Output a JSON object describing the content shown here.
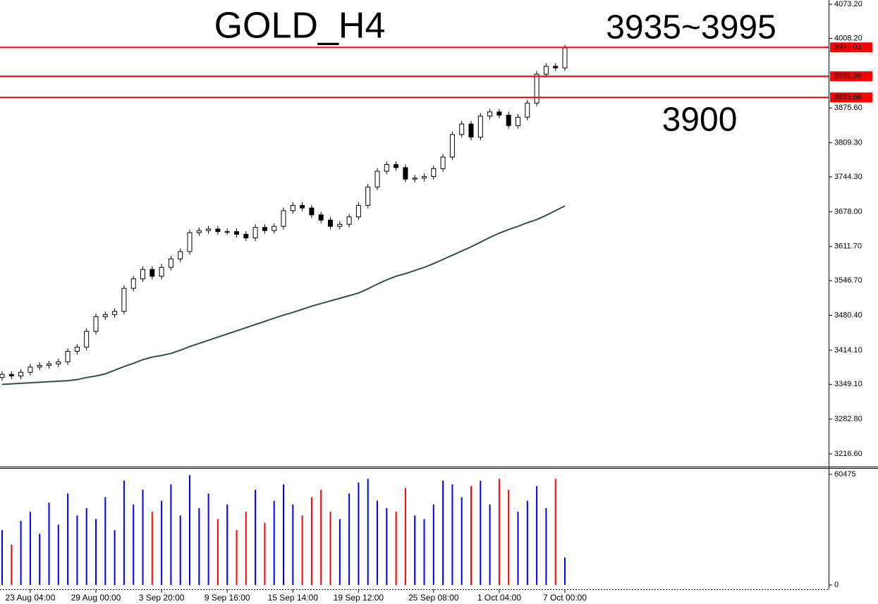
{
  "chart_data": [
    {
      "type": "candlestick",
      "annotations": [
        {
          "text": "GOLD_H4",
          "color": "#ff0000"
        },
        {
          "text": "3935~3995",
          "color": "#000080"
        },
        {
          "text": "3900",
          "color": "#ff0000"
        }
      ],
      "ylim": [
        3192.4,
        4081.3
      ],
      "yticks": [
        {
          "value": 4073.2,
          "label": "4073.20"
        },
        {
          "value": 4008.2,
          "label": "4008.20"
        },
        {
          "value": 3875.6,
          "label": "3875.60"
        },
        {
          "value": 3809.3,
          "label": "3809.30"
        },
        {
          "value": 3744.3,
          "label": "3744.30"
        },
        {
          "value": 3678,
          "label": "3678.00"
        },
        {
          "value": 3611.7,
          "label": "3611.70"
        },
        {
          "value": 3546.7,
          "label": "3546.70"
        },
        {
          "value": 3480.4,
          "label": "3480.40"
        },
        {
          "value": 3414.1,
          "label": "3414.10"
        },
        {
          "value": 3349.1,
          "label": "3349.10"
        },
        {
          "value": 3282.8,
          "label": "3282.80"
        },
        {
          "value": 3216.6,
          "label": "3216.60"
        }
      ],
      "hlines": {
        "color": "#ff0000",
        "values": [
          3991.03,
          3935.96,
          3895.66
        ]
      },
      "candles": {
        "open": [
          3362,
          3368,
          3365,
          3372,
          3382,
          3385,
          3388,
          3392,
          3412,
          3420,
          3450,
          3478,
          3482,
          3488,
          3532,
          3550,
          3568,
          3555,
          3572,
          3588,
          3602,
          3638,
          3642,
          3645,
          3640,
          3640,
          3635,
          3628,
          3648,
          3642,
          3650,
          3680,
          3690,
          3685,
          3672,
          3662,
          3650,
          3654,
          3668,
          3690,
          3725,
          3755,
          3768,
          3762,
          3740,
          3742,
          3745,
          3760,
          3782,
          3825,
          3845,
          3820,
          3860,
          3868,
          3862,
          3842,
          3858,
          3885,
          3940,
          3955,
          3952
        ],
        "high": [
          3374,
          3374,
          3378,
          3388,
          3391,
          3394,
          3398,
          3418,
          3426,
          3456,
          3484,
          3488,
          3494,
          3538,
          3556,
          3574,
          3574,
          3578,
          3594,
          3608,
          3644,
          3648,
          3651,
          3651,
          3646,
          3646,
          3641,
          3654,
          3654,
          3656,
          3686,
          3696,
          3696,
          3691,
          3678,
          3668,
          3660,
          3674,
          3696,
          3731,
          3761,
          3774,
          3774,
          3768,
          3748,
          3751,
          3766,
          3788,
          3831,
          3851,
          3851,
          3866,
          3874,
          3874,
          3868,
          3864,
          3891,
          3946,
          3961,
          3961,
          3996
        ],
        "low": [
          3356,
          3359,
          3359,
          3366,
          3376,
          3379,
          3382,
          3386,
          3406,
          3414,
          3444,
          3472,
          3476,
          3482,
          3526,
          3544,
          3549,
          3549,
          3566,
          3582,
          3596,
          3632,
          3636,
          3634,
          3634,
          3629,
          3622,
          3622,
          3636,
          3636,
          3644,
          3674,
          3679,
          3666,
          3656,
          3644,
          3644,
          3648,
          3662,
          3684,
          3719,
          3749,
          3756,
          3734,
          3734,
          3736,
          3739,
          3754,
          3776,
          3819,
          3814,
          3814,
          3854,
          3856,
          3836,
          3836,
          3852,
          3879,
          3934,
          3946,
          3946
        ],
        "close": [
          3368,
          3365,
          3372,
          3382,
          3385,
          3388,
          3392,
          3412,
          3420,
          3450,
          3478,
          3482,
          3488,
          3532,
          3550,
          3568,
          3555,
          3572,
          3588,
          3602,
          3638,
          3642,
          3645,
          3640,
          3640,
          3635,
          3628,
          3648,
          3642,
          3650,
          3680,
          3690,
          3685,
          3672,
          3662,
          3650,
          3654,
          3668,
          3690,
          3725,
          3755,
          3768,
          3762,
          3740,
          3742,
          3745,
          3760,
          3782,
          3825,
          3845,
          3820,
          3860,
          3868,
          3862,
          3842,
          3858,
          3885,
          3940,
          3955,
          3952,
          3990
        ]
      },
      "series": [
        {
          "color": "#2f4f4f",
          "values": [
            3349,
            3350,
            3351,
            3352,
            3353,
            3354,
            3355,
            3356,
            3358,
            3362,
            3365,
            3369,
            3376,
            3383,
            3389,
            3396,
            3401,
            3404,
            3408,
            3414,
            3421,
            3427,
            3433,
            3439,
            3445,
            3451,
            3457,
            3463,
            3469,
            3475,
            3481,
            3486,
            3492,
            3498,
            3503,
            3508,
            3513,
            3518,
            3523,
            3531,
            3540,
            3548,
            3555,
            3560,
            3566,
            3572,
            3579,
            3587,
            3595,
            3603,
            3611,
            3620,
            3629,
            3637,
            3644,
            3650,
            3657,
            3663,
            3671,
            3680,
            3689
          ]
        }
      ]
    },
    {
      "type": "bar",
      "up_color": "#0000ff",
      "down_color": "#ff0000",
      "ylim": [
        0,
        63942
      ],
      "yticks": [
        60475,
        0
      ],
      "categories": [
        null,
        null,
        null,
        "23 Aug 04:00",
        null,
        null,
        null,
        null,
        null,
        null,
        "29 Aug 00:00",
        null,
        null,
        null,
        null,
        null,
        null,
        "3 Sep 20:00",
        null,
        null,
        null,
        null,
        null,
        null,
        "9 Sep 16:00",
        null,
        null,
        null,
        null,
        null,
        null,
        "15 Sep 14:00",
        null,
        null,
        null,
        null,
        null,
        null,
        "19 Sep 12:00",
        null,
        null,
        null,
        null,
        null,
        null,
        null,
        "25 Sep 08:00",
        null,
        null,
        null,
        null,
        null,
        null,
        "1 Oct 04:00",
        null,
        null,
        null,
        null,
        null,
        null,
        "7 Oct 00:00"
      ],
      "values": [
        30000,
        22000,
        35000,
        40000,
        28000,
        45000,
        33000,
        50000,
        38000,
        42000,
        36000,
        48000,
        30000,
        57000,
        44000,
        52000,
        40000,
        46000,
        55000,
        38000,
        60000,
        42000,
        50000,
        36000,
        44000,
        30000,
        40000,
        52000,
        34000,
        46000,
        55000,
        44000,
        38000,
        48000,
        52000,
        40000,
        36000,
        50000,
        56000,
        58000,
        46000,
        42000,
        40000,
        53000,
        38000,
        36000,
        44000,
        57000,
        55000,
        48000,
        54000,
        57000,
        44000,
        58000,
        52000,
        40000,
        46000,
        54000,
        42000,
        58000,
        15000
      ]
    }
  ]
}
